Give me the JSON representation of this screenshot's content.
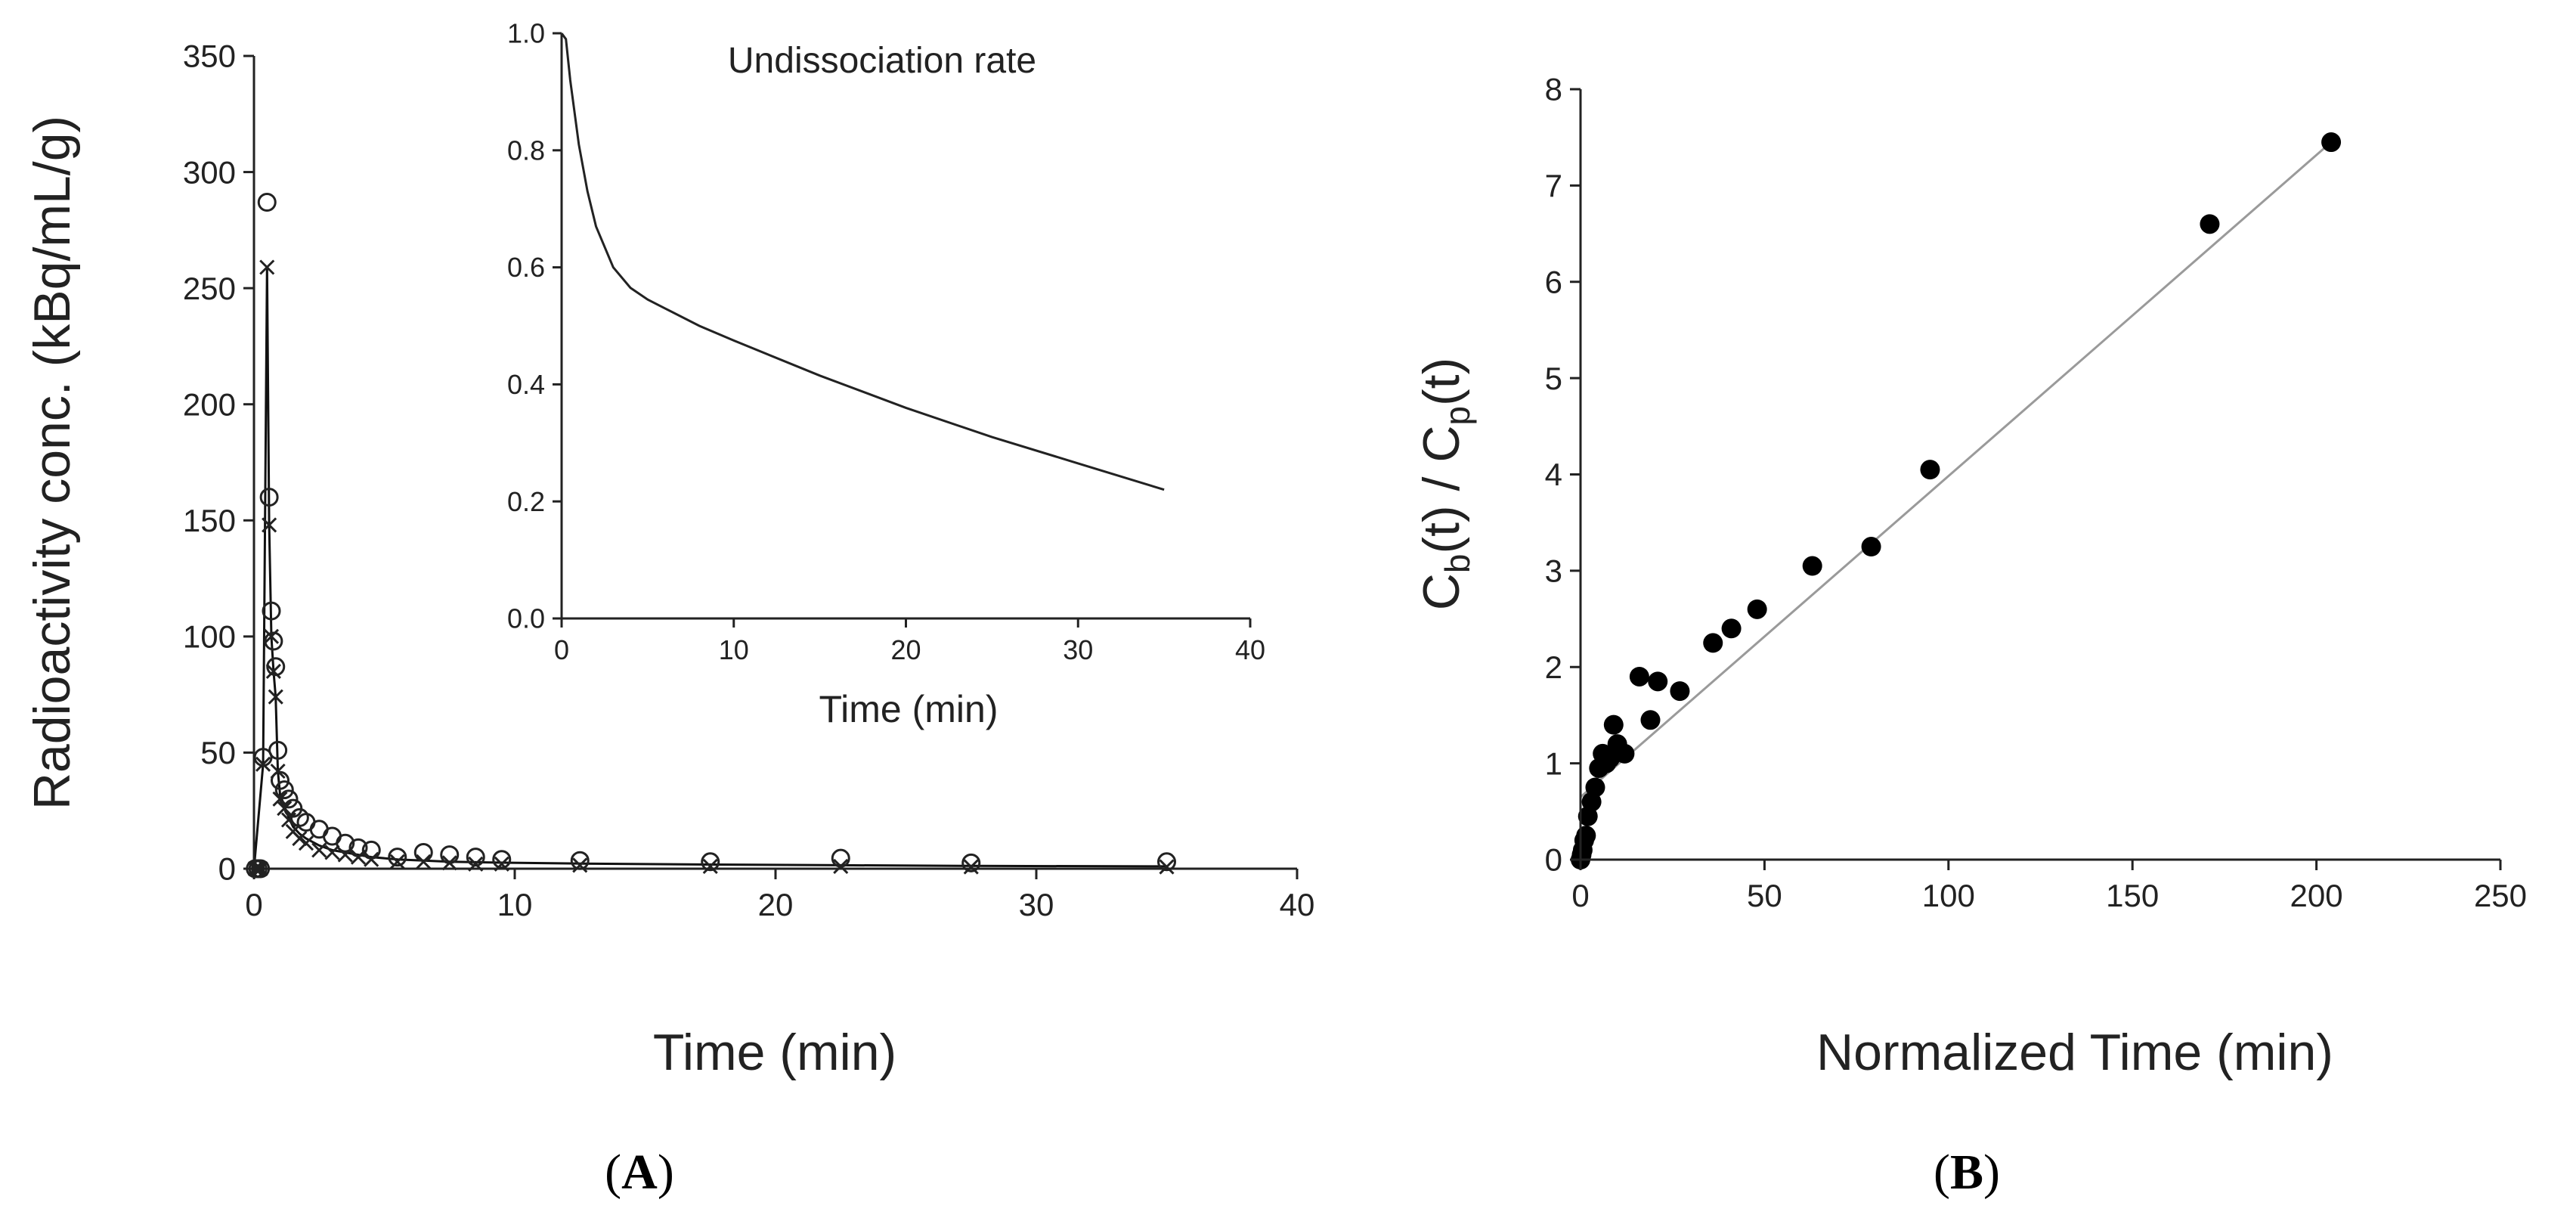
{
  "figure": {
    "panel_labels": [
      {
        "open": "(",
        "letter": "A",
        "close": ")"
      },
      {
        "open": "(",
        "letter": "B",
        "close": ")"
      }
    ]
  },
  "chart_data": [
    {
      "id": "A",
      "type": "scatter",
      "title": "",
      "xlabel": "Time (min)",
      "ylabel": "Radioactivity conc. (kBq/mL/g)",
      "xlim": [
        0,
        40
      ],
      "ylim": [
        0,
        350
      ],
      "xticks": [
        0,
        10,
        20,
        30,
        40
      ],
      "yticks": [
        0,
        50,
        100,
        150,
        200,
        250,
        300,
        350
      ],
      "grid": false,
      "legend": "none",
      "series": [
        {
          "name": "circle",
          "marker": "circle",
          "x": [
            0.05,
            0.15,
            0.25,
            0.35,
            0.5,
            0.583,
            0.667,
            0.75,
            0.833,
            0.917,
            1.0,
            1.167,
            1.333,
            1.5,
            1.75,
            2.0,
            2.5,
            3.0,
            3.5,
            4.0,
            4.5,
            5.5,
            6.5,
            7.5,
            8.5,
            9.5,
            12.5,
            17.5,
            22.5,
            27.5,
            35.0
          ],
          "values": [
            0,
            0,
            0,
            48,
            287,
            160,
            111,
            98,
            87,
            51,
            38,
            34,
            30,
            26,
            22,
            20,
            17,
            14,
            11,
            9,
            8,
            5,
            7,
            6,
            5,
            4,
            3.5,
            3,
            4.5,
            2.5,
            3
          ]
        },
        {
          "name": "cross",
          "marker": "x",
          "x": [
            0.05,
            0.15,
            0.25,
            0.35,
            0.5,
            0.583,
            0.667,
            0.75,
            0.833,
            0.917,
            1.0,
            1.167,
            1.333,
            1.5,
            1.75,
            2.0,
            2.5,
            3.0,
            3.5,
            4.0,
            4.5,
            5.5,
            6.5,
            7.5,
            8.5,
            9.5,
            12.5,
            17.5,
            22.5,
            27.5,
            35.0
          ],
          "values": [
            0,
            0,
            0,
            45,
            259,
            148,
            100,
            85,
            74,
            42,
            30,
            26,
            21,
            16,
            13,
            11,
            8,
            7,
            6,
            5,
            4,
            3,
            3,
            2.5,
            2,
            2,
            1.5,
            1,
            1,
            0.8,
            0.8
          ]
        },
        {
          "name": "model fit",
          "marker": "line",
          "x": [
            0,
            0.35,
            0.5,
            0.583,
            0.667,
            0.75,
            0.833,
            0.917,
            1.0,
            1.167,
            1.333,
            1.5,
            1.75,
            2.0,
            2.5,
            3.0,
            3.5,
            4.0,
            4.5,
            5.5,
            6.5,
            7.5,
            8.5,
            9.5,
            12.5,
            17.5,
            22.5,
            27.5,
            35.0
          ],
          "values": [
            0,
            45,
            259,
            148,
            100,
            85,
            74,
            42,
            32,
            27,
            22,
            18,
            15,
            13,
            10,
            8,
            7,
            6,
            5,
            4,
            3.5,
            3,
            2.8,
            2.6,
            2.2,
            1.8,
            1.5,
            1.2,
            1.0
          ]
        }
      ],
      "inset": {
        "type": "line",
        "annotation": "Undissociation rate",
        "xlabel": "Time (min)",
        "ylabel": "",
        "xlim": [
          0,
          40
        ],
        "ylim": [
          0,
          1.0
        ],
        "xticks": [
          0,
          10,
          20,
          30,
          40
        ],
        "yticks": [
          "0.0",
          "0.2",
          "0.4",
          "0.6",
          "0.8",
          "1.0"
        ],
        "x": [
          0,
          0.25,
          0.5,
          1,
          1.5,
          2,
          3,
          4,
          5,
          6,
          8,
          10,
          15,
          20,
          25,
          30,
          35
        ],
        "values": [
          1.0,
          0.99,
          0.92,
          0.81,
          0.73,
          0.67,
          0.6,
          0.565,
          0.545,
          0.53,
          0.5,
          0.475,
          0.415,
          0.36,
          0.31,
          0.265,
          0.22
        ]
      }
    },
    {
      "id": "B",
      "type": "scatter",
      "title": "",
      "xlabel": "Normalized Time (min)",
      "ylabel": {
        "c": "C",
        "sub_b": "b",
        "mid": "(t) / C",
        "sub_p": "p",
        "end": "(t)"
      },
      "xlim": [
        0,
        250
      ],
      "ylim": [
        0,
        8
      ],
      "xticks": [
        0,
        50,
        100,
        150,
        200,
        250
      ],
      "yticks": [
        0,
        1,
        2,
        3,
        4,
        5,
        6,
        7,
        8
      ],
      "grid": false,
      "legend": "none",
      "series": [
        {
          "name": "data",
          "marker": "filled-circle",
          "x": [
            0,
            0.3,
            0.6,
            1,
            1.5,
            2,
            3,
            4,
            5,
            6,
            7,
            8,
            9,
            10,
            12,
            16,
            19,
            21,
            27,
            36,
            41,
            48,
            63,
            79,
            95,
            171,
            204
          ],
          "values": [
            0,
            0.05,
            0.1,
            0.2,
            0.25,
            0.45,
            0.6,
            0.75,
            0.95,
            1.1,
            1.0,
            1.05,
            1.4,
            1.2,
            1.1,
            1.9,
            1.45,
            1.85,
            1.75,
            2.25,
            2.4,
            2.6,
            3.05,
            3.25,
            4.05,
            6.6,
            7.45
          ]
        }
      ],
      "fit_line": {
        "x": [
          0,
          204
        ],
        "values": [
          0.65,
          7.45
        ]
      }
    }
  ]
}
